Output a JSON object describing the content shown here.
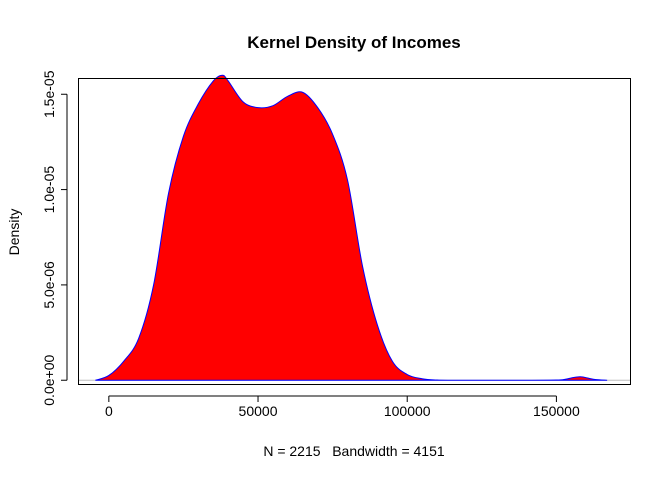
{
  "chart_data": {
    "type": "area",
    "title": "Kernel Density of Incomes",
    "xlabel": "N = 2215   Bandwidth = 4151",
    "ylabel": "Density",
    "xlim": [
      -10000,
      175000
    ],
    "ylim": [
      -2.5e-07,
      1.58e-05
    ],
    "x_ticks": [
      0,
      50000,
      100000,
      150000
    ],
    "x_tick_labels": [
      "0",
      "50000",
      "100000",
      "150000"
    ],
    "y_ticks": [
      0,
      5e-06,
      1e-05,
      1.5e-05
    ],
    "y_tick_labels": [
      "0.0e+00",
      "5.0e-06",
      "1.0e-05",
      "1.5e-05"
    ],
    "grid": false,
    "baseline": 0,
    "colors": {
      "fill": "#ff0000",
      "line": "#0000ff",
      "baseline": "#bebebe"
    },
    "series": [
      {
        "x": [
          -4500,
          0,
          5000,
          10000,
          15000,
          20000,
          25000,
          30000,
          35000,
          38000,
          40000,
          45000,
          50000,
          55000,
          60000,
          65000,
          70000,
          75000,
          80000,
          85000,
          90000,
          95000,
          100000,
          105000,
          110000,
          115000,
          120000,
          130000,
          140000,
          150000,
          153000,
          155000,
          158000,
          161000,
          163000,
          167000
        ],
        "y": [
          0,
          2.5e-07,
          1e-06,
          2.2e-06,
          5e-06,
          9.8e-06,
          1.28e-05,
          1.45e-05,
          1.57e-05,
          1.6e-05,
          1.57e-05,
          1.46e-05,
          1.43e-05,
          1.44e-05,
          1.49e-05,
          1.51e-05,
          1.43e-05,
          1.29e-05,
          1.05e-05,
          6e-06,
          2.9e-06,
          1e-06,
          3e-07,
          8e-08,
          1e-08,
          0,
          0,
          0,
          0,
          1e-08,
          5e-08,
          1.2e-07,
          1.8e-07,
          1e-07,
          4e-08,
          0
        ]
      }
    ]
  }
}
